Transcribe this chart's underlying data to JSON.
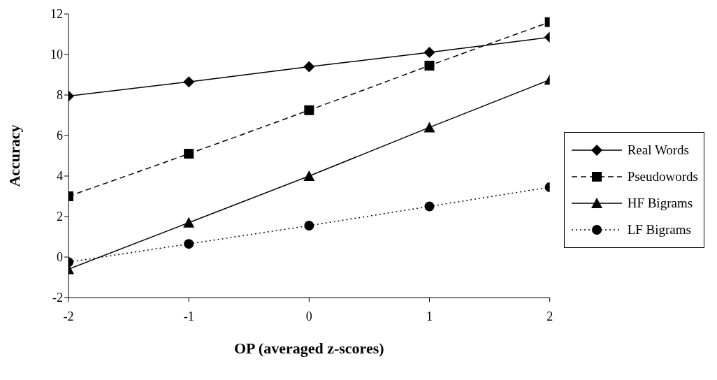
{
  "chart_data": {
    "type": "line",
    "xlabel": "OP (averaged z-scores)",
    "ylabel": "Accuracy",
    "x": [
      -2,
      -1,
      0,
      1,
      2
    ],
    "xlim": [
      -2,
      2
    ],
    "xticks": [
      -2,
      -1,
      0,
      1,
      2
    ],
    "ylim": [
      -2,
      12
    ],
    "yticks": [
      -2,
      0,
      2,
      4,
      6,
      8,
      10,
      12
    ],
    "grid": false,
    "legend": "right",
    "series": [
      {
        "name": "Real Words",
        "color": "#000000",
        "marker": "diamond",
        "line_style": "solid",
        "values": [
          7.95,
          8.65,
          9.4,
          10.1,
          10.85
        ]
      },
      {
        "name": "Pseudowords",
        "color": "#000000",
        "marker": "square",
        "line_style": "dashed",
        "values": [
          3.0,
          5.1,
          7.25,
          9.45,
          11.6
        ]
      },
      {
        "name": "HF Bigrams",
        "color": "#000000",
        "marker": "triangle",
        "line_style": "solid",
        "values": [
          -0.6,
          1.7,
          4.0,
          6.4,
          8.75
        ]
      },
      {
        "name": "LF Bigrams",
        "color": "#000000",
        "marker": "circle",
        "line_style": "dotted",
        "values": [
          -0.25,
          0.65,
          1.55,
          2.5,
          3.45
        ]
      }
    ]
  }
}
